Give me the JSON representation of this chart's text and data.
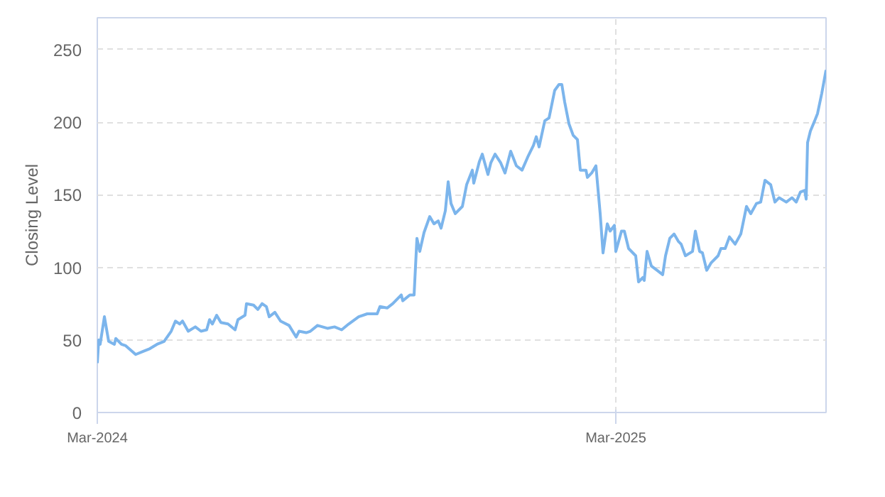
{
  "chart_data": {
    "type": "line",
    "ylabel": "Closing Level",
    "xlim": [
      "2024-03-01",
      "2025-07-27"
    ],
    "ylim": [
      0,
      272
    ],
    "xticks": [
      {
        "value": "2024-03-01",
        "label": "Mar-2024"
      },
      {
        "value": "2025-03-01",
        "label": "Mar-2025"
      }
    ],
    "yticks": [
      0,
      50,
      100,
      150,
      200,
      250
    ],
    "grid": true,
    "x": [
      "2024-03-01",
      "2024-03-02",
      "2024-03-03",
      "2024-03-06",
      "2024-03-09",
      "2024-03-13",
      "2024-03-14",
      "2024-03-18",
      "2024-03-21",
      "2024-03-28",
      "2024-04-02",
      "2024-04-07",
      "2024-04-12",
      "2024-04-17",
      "2024-04-22",
      "2024-04-25",
      "2024-04-28",
      "2024-04-30",
      "2024-05-04",
      "2024-05-09",
      "2024-05-13",
      "2024-05-17",
      "2024-05-19",
      "2024-05-21",
      "2024-05-24",
      "2024-05-27",
      "2024-06-01",
      "2024-06-06",
      "2024-06-08",
      "2024-06-13",
      "2024-06-14",
      "2024-06-19",
      "2024-06-22",
      "2024-06-25",
      "2024-06-28",
      "2024-06-30",
      "2024-07-04",
      "2024-07-08",
      "2024-07-14",
      "2024-07-19",
      "2024-07-21",
      "2024-07-26",
      "2024-07-29",
      "2024-08-03",
      "2024-08-10",
      "2024-08-15",
      "2024-08-20",
      "2024-08-25",
      "2024-09-01",
      "2024-09-07",
      "2024-09-09",
      "2024-09-14",
      "2024-09-16",
      "2024-09-21",
      "2024-09-25",
      "2024-10-01",
      "2024-10-02",
      "2024-10-07",
      "2024-10-10",
      "2024-10-12",
      "2024-10-14",
      "2024-10-17",
      "2024-10-21",
      "2024-10-24",
      "2024-10-27",
      "2024-10-29",
      "2024-11-01",
      "2024-11-03",
      "2024-11-05",
      "2024-11-08",
      "2024-11-13",
      "2024-11-16",
      "2024-11-20",
      "2024-11-21",
      "2024-11-25",
      "2024-11-27",
      "2024-12-01",
      "2024-12-03",
      "2024-12-06",
      "2024-12-10",
      "2024-12-13",
      "2024-12-17",
      "2024-12-21",
      "2024-12-25",
      "2024-12-29",
      "2025-01-02",
      "2025-01-04",
      "2025-01-06",
      "2025-01-10",
      "2025-01-13",
      "2025-01-17",
      "2025-01-20",
      "2025-01-22",
      "2025-01-24",
      "2025-01-27",
      "2025-01-30",
      "2025-02-02",
      "2025-02-04",
      "2025-02-08",
      "2025-02-09",
      "2025-02-12",
      "2025-02-15",
      "2025-02-18",
      "2025-02-20",
      "2025-02-23",
      "2025-02-25",
      "2025-02-28",
      "2025-03-01",
      "2025-03-05",
      "2025-03-07",
      "2025-03-10",
      "2025-03-15",
      "2025-03-17",
      "2025-03-20",
      "2025-03-21",
      "2025-03-23",
      "2025-03-26",
      "2025-03-30",
      "2025-04-03",
      "2025-04-05",
      "2025-04-08",
      "2025-04-11",
      "2025-04-14",
      "2025-04-16",
      "2025-04-19",
      "2025-04-24",
      "2025-04-26",
      "2025-04-29",
      "2025-05-01",
      "2025-05-04",
      "2025-05-07",
      "2025-05-12",
      "2025-05-14",
      "2025-05-17",
      "2025-05-20",
      "2025-05-24",
      "2025-05-28",
      "2025-06-01",
      "2025-06-04",
      "2025-06-08",
      "2025-06-11",
      "2025-06-14",
      "2025-06-18",
      "2025-06-21",
      "2025-06-24",
      "2025-06-29",
      "2025-07-03",
      "2025-07-06",
      "2025-07-09",
      "2025-07-12",
      "2025-07-13",
      "2025-07-14",
      "2025-07-16",
      "2025-07-19",
      "2025-07-21",
      "2025-07-24",
      "2025-07-27"
    ],
    "series": [
      {
        "color": "#7cb5ec",
        "values": [
          34,
          50,
          47,
          66,
          49,
          47,
          51,
          47,
          46,
          40,
          42,
          44,
          47,
          49,
          56,
          63,
          61,
          63,
          56,
          59,
          56,
          57,
          64,
          61,
          67,
          62,
          61,
          57,
          64,
          67,
          75,
          74,
          71,
          75,
          73,
          66,
          69,
          63,
          60,
          52,
          56,
          55,
          56,
          60,
          58,
          59,
          57,
          61,
          66,
          68,
          68,
          68,
          73,
          72,
          75,
          81,
          77,
          81,
          81,
          120,
          111,
          124,
          135,
          130,
          132,
          127,
          139,
          159,
          144,
          137,
          142,
          157,
          167,
          158,
          173,
          178,
          164,
          172,
          178,
          172,
          165,
          180,
          170,
          167,
          176,
          184,
          190,
          183,
          201,
          203,
          222,
          226,
          226,
          214,
          199,
          191,
          188,
          167,
          167,
          162,
          165,
          170,
          137,
          110,
          130,
          125,
          129,
          111,
          125,
          125,
          113,
          108,
          90,
          93,
          91,
          111,
          101,
          98,
          95,
          108,
          120,
          123,
          118,
          116,
          108,
          111,
          125,
          111,
          110,
          98,
          103,
          108,
          113,
          113,
          121,
          116,
          123,
          142,
          137,
          144,
          145,
          160,
          157,
          145,
          148,
          145,
          148,
          145,
          152,
          153,
          147,
          186,
          194,
          201,
          206,
          220,
          236
        ]
      }
    ]
  }
}
